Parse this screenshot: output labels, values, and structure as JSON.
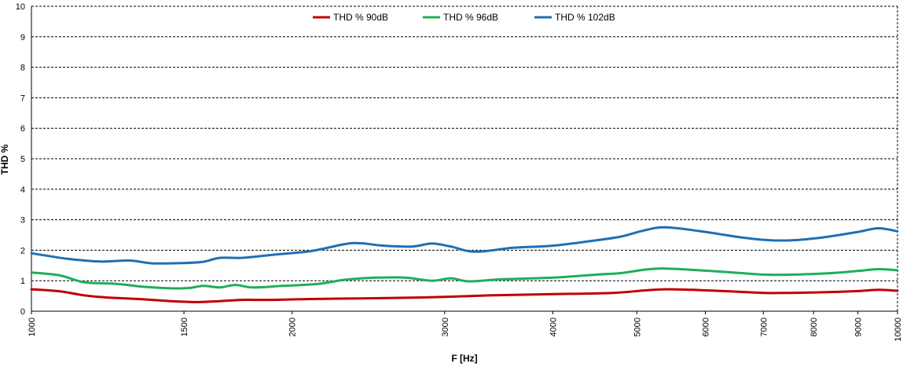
{
  "chart_data": {
    "type": "line",
    "xlabel": "F [Hz]",
    "ylabel": "THD %",
    "x_scale": "log",
    "xlim": [
      1000,
      10000
    ],
    "ylim": [
      0,
      10
    ],
    "y_ticks": [
      0,
      1,
      2,
      3,
      4,
      5,
      6,
      7,
      8,
      9,
      10
    ],
    "x_ticks": [
      1000,
      1500,
      2000,
      3000,
      4000,
      5000,
      6000,
      7000,
      8000,
      9000,
      10000
    ],
    "grid": "horizontal-dashed",
    "legend": "top-center",
    "series": [
      {
        "name": "THD % 90dB",
        "color": "#c00000",
        "points": [
          [
            1000,
            0.72
          ],
          [
            1080,
            0.65
          ],
          [
            1150,
            0.52
          ],
          [
            1220,
            0.45
          ],
          [
            1330,
            0.4
          ],
          [
            1450,
            0.33
          ],
          [
            1550,
            0.3
          ],
          [
            1650,
            0.33
          ],
          [
            1750,
            0.37
          ],
          [
            1900,
            0.37
          ],
          [
            2100,
            0.4
          ],
          [
            2400,
            0.42
          ],
          [
            2700,
            0.44
          ],
          [
            3000,
            0.47
          ],
          [
            3400,
            0.52
          ],
          [
            3800,
            0.55
          ],
          [
            4200,
            0.57
          ],
          [
            4700,
            0.6
          ],
          [
            5100,
            0.68
          ],
          [
            5400,
            0.72
          ],
          [
            5800,
            0.7
          ],
          [
            6300,
            0.66
          ],
          [
            7000,
            0.6
          ],
          [
            7500,
            0.6
          ],
          [
            8200,
            0.62
          ],
          [
            9000,
            0.66
          ],
          [
            9500,
            0.7
          ],
          [
            10000,
            0.67
          ]
        ]
      },
      {
        "name": "THD % 96dB",
        "color": "#1fae5a",
        "points": [
          [
            1000,
            1.27
          ],
          [
            1080,
            1.17
          ],
          [
            1150,
            0.95
          ],
          [
            1250,
            0.9
          ],
          [
            1350,
            0.8
          ],
          [
            1450,
            0.75
          ],
          [
            1520,
            0.76
          ],
          [
            1580,
            0.83
          ],
          [
            1650,
            0.78
          ],
          [
            1720,
            0.86
          ],
          [
            1800,
            0.78
          ],
          [
            1950,
            0.83
          ],
          [
            2150,
            0.9
          ],
          [
            2300,
            1.03
          ],
          [
            2500,
            1.1
          ],
          [
            2700,
            1.1
          ],
          [
            2900,
            1.0
          ],
          [
            3050,
            1.08
          ],
          [
            3200,
            0.98
          ],
          [
            3500,
            1.05
          ],
          [
            4000,
            1.1
          ],
          [
            4500,
            1.2
          ],
          [
            4800,
            1.25
          ],
          [
            5100,
            1.36
          ],
          [
            5400,
            1.4
          ],
          [
            6000,
            1.33
          ],
          [
            6600,
            1.25
          ],
          [
            7000,
            1.2
          ],
          [
            7600,
            1.2
          ],
          [
            8400,
            1.25
          ],
          [
            9000,
            1.32
          ],
          [
            9500,
            1.38
          ],
          [
            10000,
            1.34
          ]
        ]
      },
      {
        "name": "THD % 102dB",
        "color": "#1f6fb5",
        "points": [
          [
            1000,
            1.9
          ],
          [
            1100,
            1.72
          ],
          [
            1200,
            1.63
          ],
          [
            1300,
            1.66
          ],
          [
            1380,
            1.57
          ],
          [
            1500,
            1.58
          ],
          [
            1580,
            1.62
          ],
          [
            1650,
            1.75
          ],
          [
            1750,
            1.75
          ],
          [
            1900,
            1.85
          ],
          [
            2100,
            1.97
          ],
          [
            2300,
            2.2
          ],
          [
            2400,
            2.23
          ],
          [
            2550,
            2.15
          ],
          [
            2750,
            2.12
          ],
          [
            2900,
            2.22
          ],
          [
            3050,
            2.12
          ],
          [
            3250,
            1.95
          ],
          [
            3600,
            2.08
          ],
          [
            4000,
            2.15
          ],
          [
            4500,
            2.33
          ],
          [
            4800,
            2.45
          ],
          [
            5100,
            2.65
          ],
          [
            5400,
            2.75
          ],
          [
            6000,
            2.6
          ],
          [
            6600,
            2.42
          ],
          [
            7100,
            2.33
          ],
          [
            7600,
            2.33
          ],
          [
            8200,
            2.42
          ],
          [
            9000,
            2.6
          ],
          [
            9500,
            2.72
          ],
          [
            10000,
            2.62
          ]
        ]
      }
    ]
  }
}
